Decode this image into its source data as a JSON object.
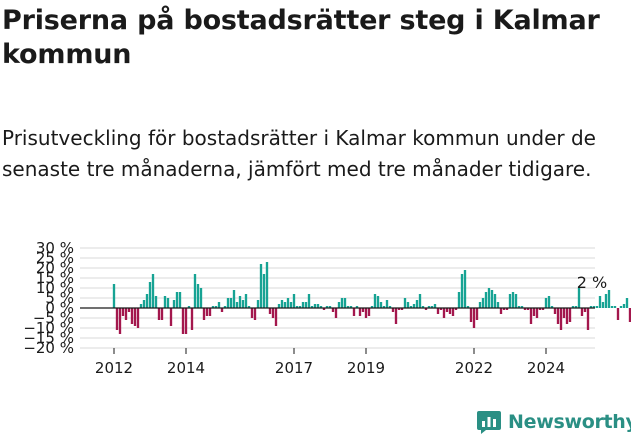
{
  "header": {
    "title": "Priserna på bostadsrätter steg i Kalmar kommun",
    "subtitle": "Prisutveckling för bostadsrätter i Kalmar kommun under de senaste tre månaderna, jämfört med tre månader tidigare."
  },
  "brand": {
    "name": "Newsworthy",
    "icon": "newsworthy-logo-icon"
  },
  "colors": {
    "positive": "#17a394",
    "negative": "#a3174d",
    "zero_line": "#1a1a1a",
    "grid": "#d9d9d9",
    "brand": "#2a8f84"
  },
  "chart_data": {
    "type": "bar",
    "title": "Priserna på bostadsrätter steg i Kalmar kommun",
    "xlabel": "",
    "ylabel": "",
    "x_start": "2012-01",
    "x_step": "month",
    "ylim": [
      -20,
      30
    ],
    "yticks": [
      30,
      25,
      20,
      15,
      10,
      5,
      0,
      -5,
      -10,
      -15,
      -20
    ],
    "ytick_labels": [
      "30 %",
      "25 %",
      "20 %",
      "15 %",
      "10 %",
      "5 %",
      "0 %",
      "−5 %",
      "−10 %",
      "−15 %",
      "−20 %"
    ],
    "xticks": [
      {
        "x": "2012-01",
        "label": "2012"
      },
      {
        "x": "2014-01",
        "label": "2014"
      },
      {
        "x": "2017-01",
        "label": "2017"
      },
      {
        "x": "2019-01",
        "label": "2019"
      },
      {
        "x": "2022-01",
        "label": "2022"
      },
      {
        "x": "2024-01",
        "label": "2024"
      }
    ],
    "grid": true,
    "legend": "none",
    "annotation": {
      "x": "2025-04",
      "label": "2 %"
    },
    "values": [
      12,
      -11,
      -13,
      -4,
      -6,
      -2,
      -8,
      -9,
      -10,
      2,
      4,
      7,
      13,
      17,
      6,
      -6,
      -6,
      6,
      5,
      -9,
      4,
      8,
      8,
      -13,
      -13,
      1,
      -11,
      17,
      12,
      10,
      -6,
      -4,
      -4,
      1,
      1,
      3,
      -2,
      1,
      5,
      5,
      9,
      3,
      6,
      4,
      7,
      1,
      -5,
      -6,
      4,
      22,
      17,
      23,
      -3,
      -5,
      -9,
      2,
      4,
      3,
      5,
      3,
      7,
      1,
      1,
      3,
      3,
      7,
      1,
      2,
      2,
      1,
      -1,
      1,
      1,
      -2,
      -5,
      3,
      5,
      5,
      1,
      1,
      -4,
      1,
      -4,
      -2,
      -5,
      -4,
      1,
      7,
      6,
      3,
      1,
      4,
      1,
      -2,
      -8,
      -1,
      -1,
      5,
      3,
      1,
      2,
      4,
      7,
      1,
      -1,
      1,
      1,
      2,
      -3,
      -1,
      -5,
      -2,
      -3,
      -4,
      -1,
      8,
      17,
      19,
      1,
      -7,
      -10,
      -6,
      3,
      5,
      8,
      10,
      9,
      7,
      3,
      -3,
      -1,
      -1,
      7,
      8,
      7,
      1,
      1,
      -1,
      -1,
      -8,
      -4,
      -5,
      -1,
      -1,
      5,
      6,
      1,
      -3,
      -8,
      -11,
      -5,
      -8,
      -7,
      1,
      1,
      10,
      -4,
      -2,
      -11,
      1,
      1,
      1,
      6,
      3,
      7,
      9,
      1,
      1,
      -6,
      1,
      2,
      5,
      -7,
      -4,
      -4,
      6,
      6,
      5,
      2
    ]
  }
}
